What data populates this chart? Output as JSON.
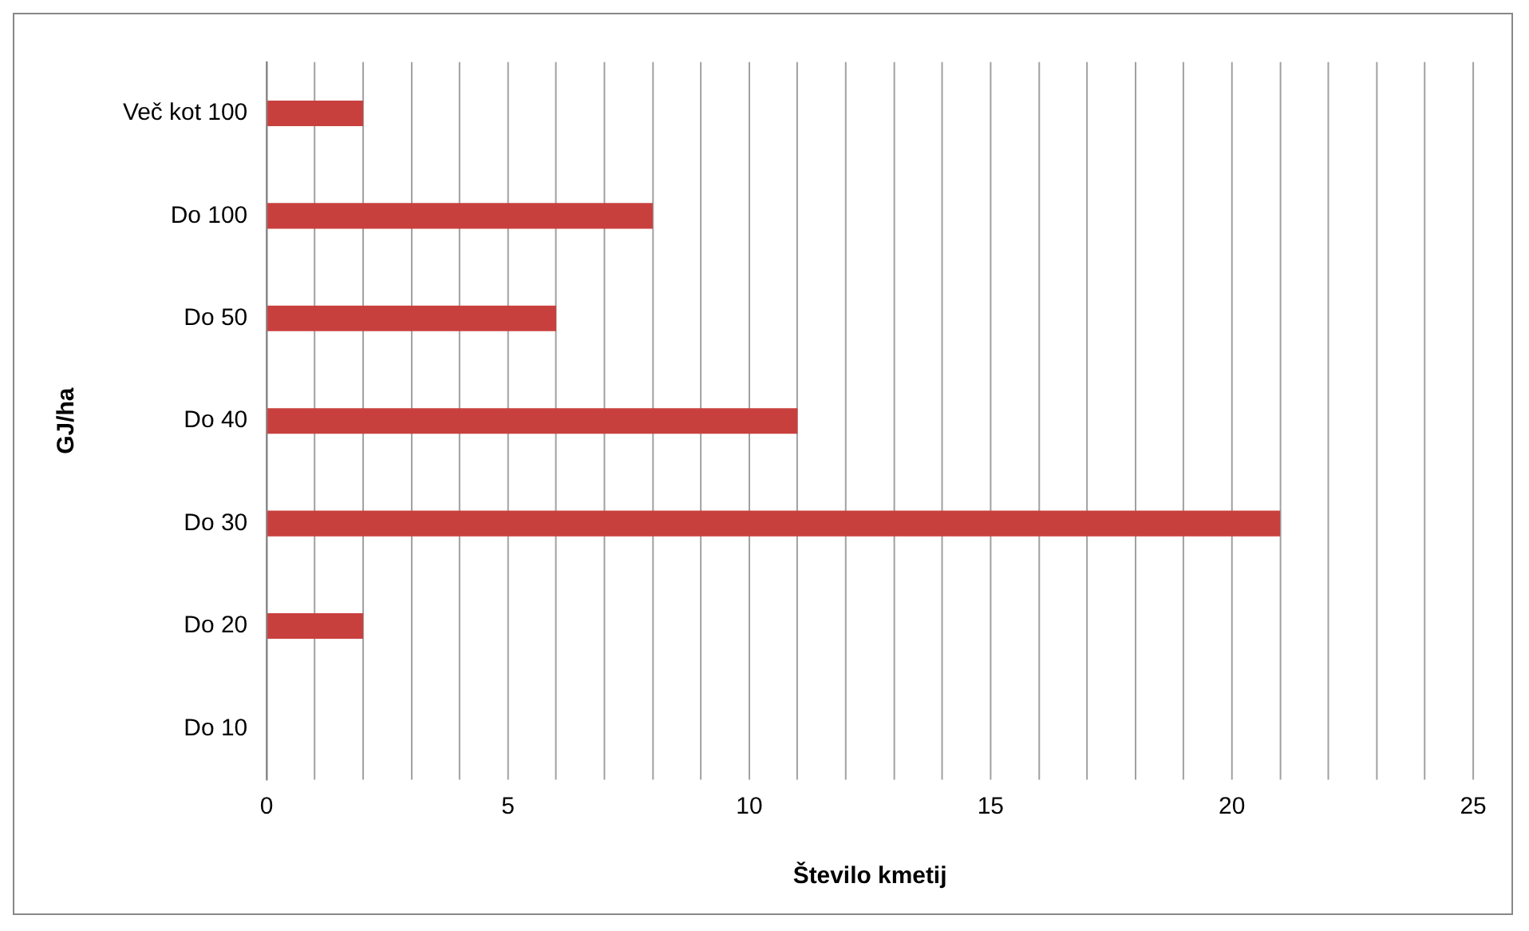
{
  "chart_data": {
    "type": "bar",
    "orientation": "horizontal",
    "xlabel": "Število kmetij",
    "ylabel": "GJ/ha",
    "categories": [
      "Več kot 100",
      "Do 100",
      "Do 50",
      "Do 40",
      "Do 30",
      "Do 20",
      "Do 10"
    ],
    "values": [
      2,
      8,
      6,
      11,
      21,
      2,
      0
    ],
    "color": "#c8403e",
    "xlim": [
      0,
      25
    ],
    "xticks": [
      0,
      {
        "value": 1,
        "label": null
      },
      {
        "value": 2,
        "label": null
      },
      {
        "value": 3,
        "label": null
      },
      {
        "value": 4,
        "label": null
      },
      5,
      {
        "value": 6,
        "label": null
      },
      {
        "value": 7,
        "label": null
      },
      {
        "value": 8,
        "label": null
      },
      {
        "value": 9,
        "label": null
      },
      10,
      {
        "value": 11,
        "label": null
      },
      {
        "value": 12,
        "label": null
      },
      {
        "value": 13,
        "label": null
      },
      {
        "value": 14,
        "label": null
      },
      15,
      {
        "value": 16,
        "label": null
      },
      {
        "value": 17,
        "label": null
      },
      {
        "value": 18,
        "label": null
      },
      {
        "value": 19,
        "label": null
      },
      20,
      {
        "value": 21,
        "label": null
      },
      {
        "value": 22,
        "label": null
      },
      {
        "value": 23,
        "label": null
      },
      {
        "value": 24,
        "label": null
      },
      25
    ],
    "grid": "x"
  }
}
